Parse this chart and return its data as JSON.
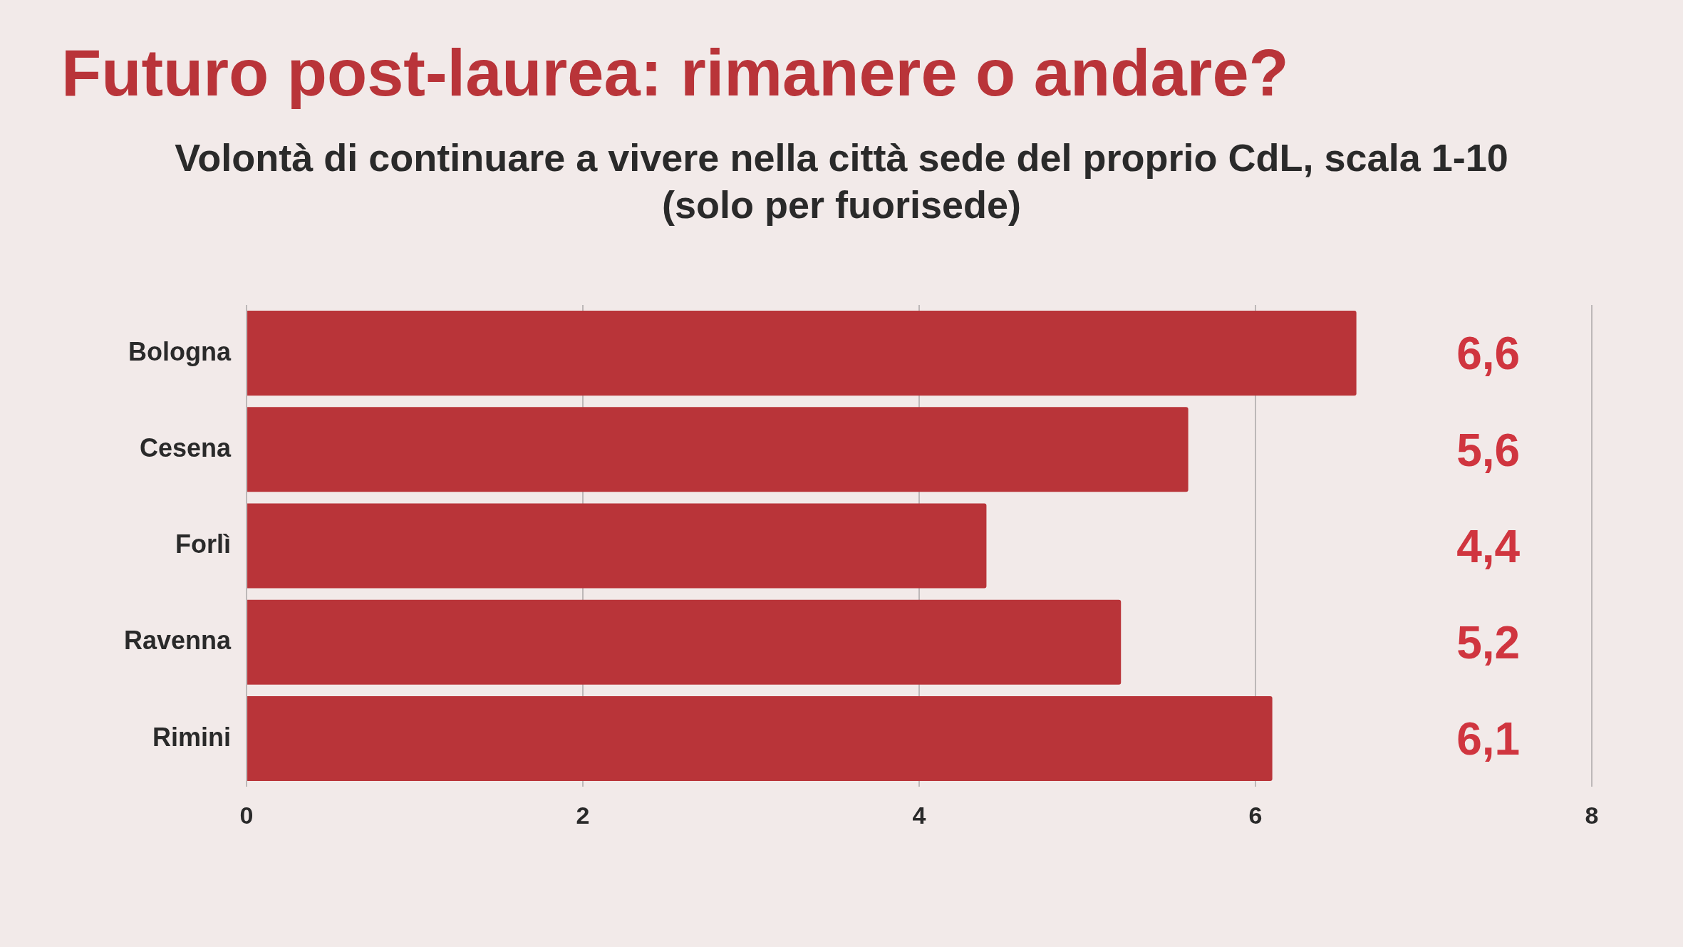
{
  "chart_data": {
    "type": "bar",
    "orientation": "horizontal",
    "title": "Futuro post-laurea: rimanere o andare?",
    "subtitle": "Volontà di continuare a vivere nella città sede del proprio CdL, scala 1-10\n(solo per fuorisede)",
    "categories": [
      "Bologna",
      "Cesena",
      "Forlì",
      "Ravenna",
      "Rimini"
    ],
    "values": [
      6.6,
      5.6,
      4.4,
      5.2,
      6.1
    ],
    "value_labels": [
      "6,6",
      "5,6",
      "4,4",
      "5,2",
      "6,1"
    ],
    "color": "#b93439",
    "xlim": [
      0,
      8
    ],
    "xticks": [
      0,
      2,
      4,
      6,
      8
    ],
    "grid": "x",
    "legend": false
  }
}
